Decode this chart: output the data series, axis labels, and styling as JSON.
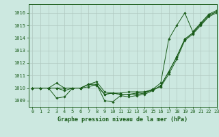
{
  "title": "Graphe pression niveau de la mer (hPa)",
  "bg_color": "#cce8e0",
  "grid_color": "#b0c8c0",
  "line_color": "#1a5c1a",
  "xlim": [
    -0.5,
    23
  ],
  "ylim": [
    1008.5,
    1016.7
  ],
  "xticks": [
    0,
    1,
    2,
    3,
    4,
    5,
    6,
    7,
    8,
    9,
    10,
    11,
    12,
    13,
    14,
    15,
    16,
    17,
    18,
    19,
    20,
    21,
    22,
    23
  ],
  "yticks": [
    1009,
    1010,
    1011,
    1012,
    1013,
    1014,
    1015,
    1016
  ],
  "series": [
    [
      1010.0,
      1010.0,
      1010.0,
      1010.0,
      1009.8,
      1010.0,
      1010.0,
      1010.3,
      1010.5,
      1009.7,
      1009.6,
      1009.6,
      1009.7,
      1009.7,
      1009.7,
      1009.8,
      1010.2,
      1011.3,
      1012.5,
      1013.9,
      1014.4,
      1015.1,
      1015.8,
      1016.1
    ],
    [
      1010.0,
      1010.0,
      1010.0,
      1009.2,
      1009.3,
      1010.0,
      1010.0,
      1010.1,
      1010.3,
      1009.0,
      1008.9,
      1009.4,
      1009.3,
      1009.4,
      1009.5,
      1009.8,
      1010.2,
      1011.3,
      1012.5,
      1013.9,
      1014.4,
      1015.1,
      1015.8,
      1016.1
    ],
    [
      1010.0,
      1010.0,
      1010.0,
      1010.0,
      1010.0,
      1010.0,
      1010.0,
      1010.3,
      1010.2,
      1009.5,
      1009.6,
      1009.5,
      1009.5,
      1009.5,
      1009.6,
      1009.9,
      1010.1,
      1011.1,
      1012.3,
      1013.8,
      1014.3,
      1015.0,
      1015.7,
      1016.0
    ],
    [
      1010.0,
      1010.0,
      1010.0,
      1010.4,
      1010.0,
      1010.0,
      1010.0,
      1010.3,
      1010.3,
      1009.5,
      1009.6,
      1009.5,
      1009.5,
      1009.6,
      1009.7,
      1009.9,
      1010.4,
      1013.9,
      1015.0,
      1016.0,
      1014.5,
      1015.2,
      1015.9,
      1016.2
    ]
  ]
}
